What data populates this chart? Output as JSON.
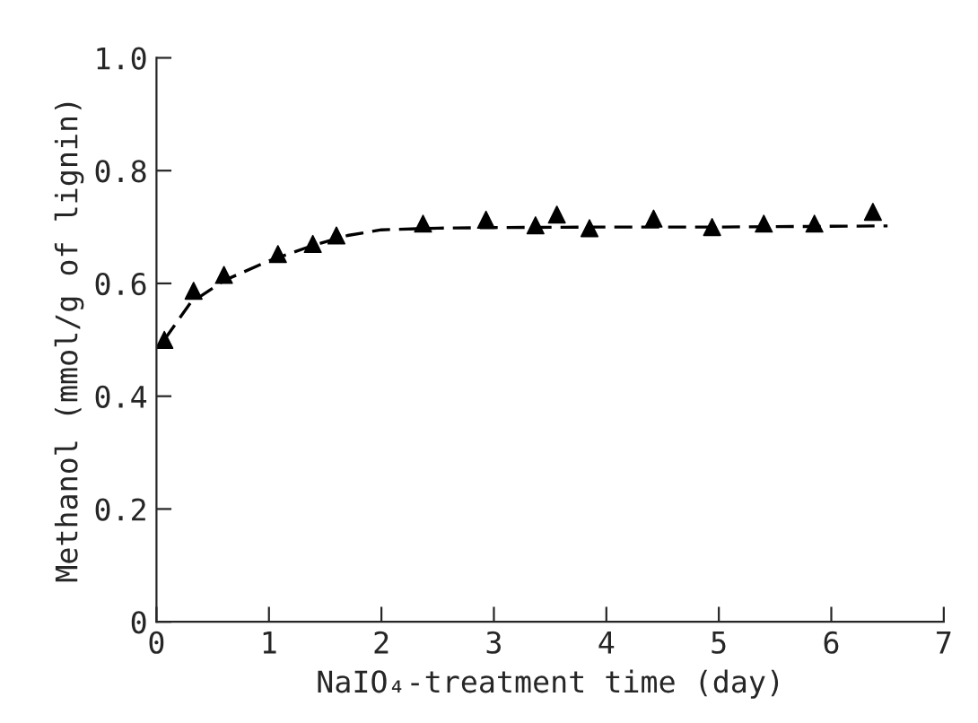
{
  "chart_data": {
    "type": "scatter",
    "xlabel": "NaIO₄-treatment time (day)",
    "ylabel": "Methanol (mmol/g of lignin)",
    "xlim": [
      0,
      7
    ],
    "xticks": [
      0,
      1,
      2,
      3,
      4,
      5,
      6,
      7
    ],
    "ylim": [
      0,
      1.0
    ],
    "yticks": [
      0,
      {
        "value": 0.2,
        "label": "0.2"
      },
      {
        "value": 0.4,
        "label": "0.4"
      },
      {
        "value": 0.6,
        "label": "0.6"
      },
      {
        "value": 0.8,
        "label": "0.8"
      },
      {
        "value": 1.0,
        "label": "1.0"
      }
    ],
    "grid": false,
    "legend": false,
    "series": [
      {
        "color": "#000000",
        "marker": "triangle",
        "x": [
          0.07,
          0.33,
          0.6,
          1.08,
          1.39,
          1.6,
          2.37,
          2.93,
          3.37,
          3.56,
          3.85,
          4.42,
          4.94,
          5.4,
          5.85,
          6.37
        ],
        "values": [
          0.5,
          0.587,
          0.615,
          0.652,
          0.67,
          0.685,
          0.706,
          0.713,
          0.703,
          0.722,
          0.698,
          0.715,
          0.7,
          0.706,
          0.706,
          0.727
        ]
      },
      {
        "type": "line",
        "color": "#000000",
        "marker": "none",
        "line_style": "dashed",
        "x": [
          0.07,
          0.3,
          0.6,
          1.0,
          1.4,
          1.7,
          2.0,
          2.5,
          3.0,
          4.0,
          5.0,
          6.5
        ],
        "values": [
          0.5,
          0.565,
          0.605,
          0.64,
          0.668,
          0.685,
          0.695,
          0.698,
          0.699,
          0.7,
          0.7,
          0.702
        ]
      }
    ]
  }
}
